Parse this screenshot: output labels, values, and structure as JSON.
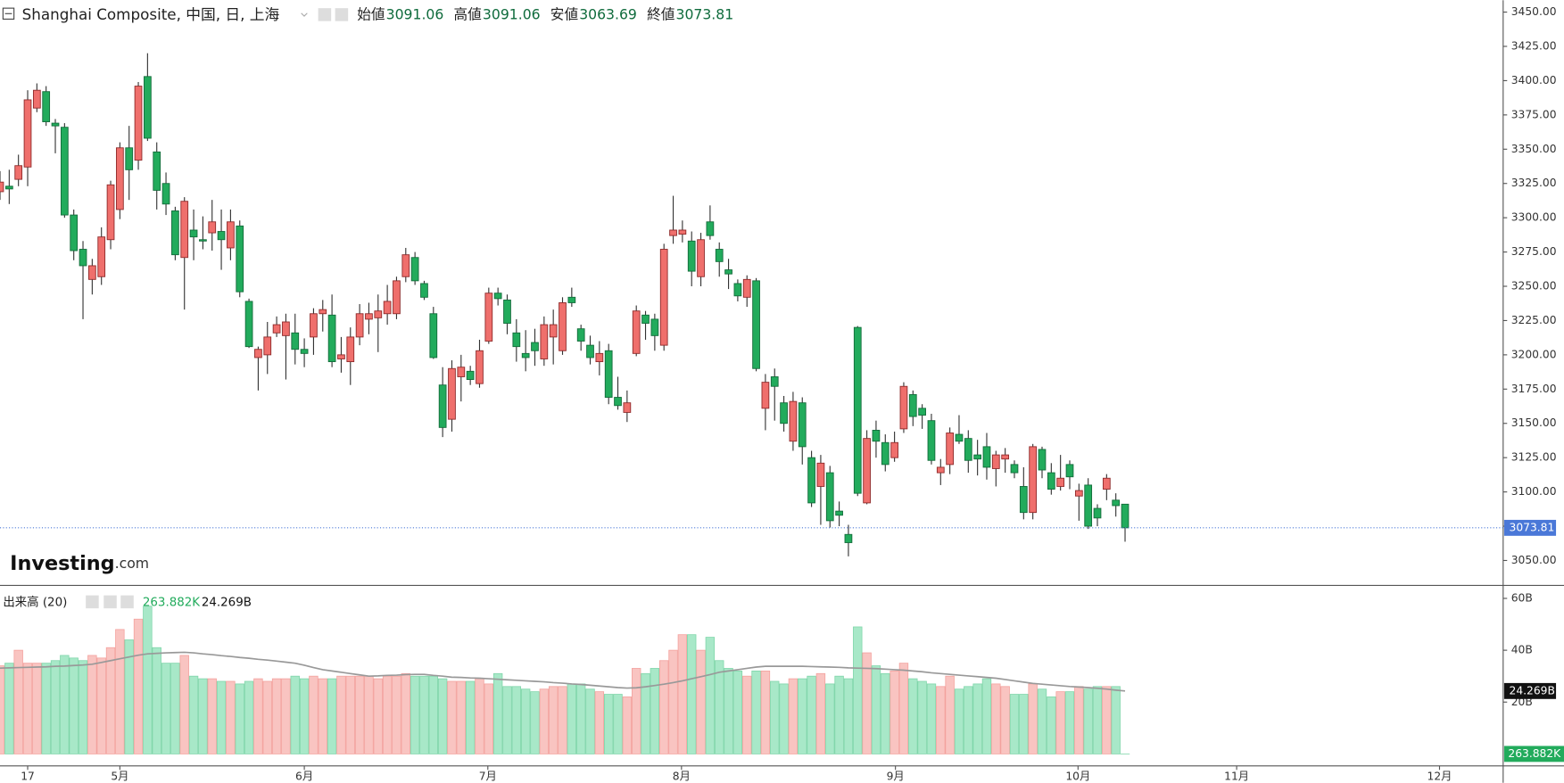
{
  "chart_data": [
    {
      "type": "candlestick",
      "title": "Shanghai Composite, 中国, 日, 上海",
      "legend": [
        {
          "label": "始値",
          "value": 3091.06
        },
        {
          "label": "高値",
          "value": 3091.06
        },
        {
          "label": "安値",
          "value": 3063.69
        },
        {
          "label": "終値",
          "value": 3073.81
        }
      ],
      "watermark": "Investing",
      "watermark_suffix": ".com",
      "up_color": "#ef6f6c",
      "down_color": "#22ab5c",
      "last_price_color": "#4a78d8",
      "open": [
        3319,
        3323,
        3328,
        3337,
        3380,
        3392,
        3369,
        3366,
        3302,
        3277,
        3255,
        3257,
        3284,
        3306,
        3351,
        3342,
        3403,
        3348,
        3325,
        3305,
        3271,
        3291,
        3284,
        3289,
        3290,
        3278,
        3294,
        3239,
        3198,
        3200,
        3216,
        3214,
        3216,
        3204,
        3213,
        3230,
        3229,
        3197,
        3195,
        3213,
        3226,
        3227,
        3230,
        3230,
        3257,
        3271,
        3252,
        3230,
        3178,
        3153,
        3184,
        3188,
        3179,
        3210,
        3245,
        3240,
        3216,
        3201,
        3209,
        3197,
        3213,
        3203,
        3242,
        3219,
        3207,
        3195,
        3203,
        3169,
        3158,
        3201,
        3229,
        3226,
        3207,
        3287,
        3288,
        3283,
        3257,
        3297,
        3277,
        3262,
        3252,
        3242,
        3254,
        3161,
        3184,
        3165,
        3137,
        3165,
        3125,
        3104,
        3114,
        3086,
        3069,
        3220,
        3092,
        3145,
        3136,
        3125,
        3146,
        3171,
        3161,
        3152,
        3114,
        3120,
        3142,
        3139,
        3127,
        3133,
        3117,
        3124,
        3120,
        3104,
        3085,
        3131,
        3114,
        3104,
        3120,
        3097,
        3105,
        3088,
        3102,
        3094,
        3091.06
      ],
      "high": [
        3334,
        3335,
        3346,
        3393,
        3398,
        3396,
        3372,
        3369,
        3306,
        3283,
        3270,
        3293,
        3327,
        3355,
        3367,
        3399,
        3420,
        3355,
        3333,
        3308,
        3315,
        3306,
        3301,
        3313,
        3306,
        3306,
        3298,
        3241,
        3206,
        3224,
        3228,
        3230,
        3230,
        3212,
        3234,
        3240,
        3244,
        3213,
        3220,
        3237,
        3238,
        3244,
        3251,
        3257,
        3278,
        3275,
        3254,
        3235,
        3191,
        3196,
        3200,
        3192,
        3211,
        3249,
        3249,
        3244,
        3226,
        3218,
        3219,
        3228,
        3233,
        3242,
        3249,
        3222,
        3214,
        3210,
        3208,
        3184,
        3174,
        3236,
        3232,
        3230,
        3281,
        3316,
        3298,
        3290,
        3289,
        3309,
        3282,
        3270,
        3255,
        3258,
        3256,
        3186,
        3190,
        3170,
        3173,
        3169,
        3130,
        3127,
        3119,
        3093,
        3076,
        3221,
        3145,
        3152,
        3142,
        3144,
        3180,
        3174,
        3164,
        3157,
        3124,
        3147,
        3156,
        3145,
        3138,
        3143,
        3130,
        3132,
        3123,
        3118,
        3135,
        3133,
        3121,
        3127,
        3123,
        3106,
        3110,
        3091,
        3113,
        3099,
        3091.06
      ],
      "low": [
        3313,
        3310,
        3323,
        3323,
        3377,
        3367,
        3347,
        3300,
        3269,
        3226,
        3244,
        3251,
        3277,
        3299,
        3313,
        3335,
        3356,
        3306,
        3302,
        3269,
        3233,
        3269,
        3277,
        3276,
        3262,
        3269,
        3242,
        3205,
        3174,
        3186,
        3213,
        3182,
        3193,
        3191,
        3200,
        3217,
        3191,
        3187,
        3178,
        3207,
        3215,
        3202,
        3222,
        3226,
        3253,
        3251,
        3240,
        3197,
        3140,
        3144,
        3166,
        3178,
        3176,
        3208,
        3236,
        3215,
        3195,
        3188,
        3192,
        3192,
        3193,
        3200,
        3235,
        3203,
        3193,
        3185,
        3164,
        3160,
        3151,
        3199,
        3211,
        3203,
        3203,
        3281,
        3282,
        3250,
        3250,
        3284,
        3257,
        3248,
        3239,
        3235,
        3188,
        3145,
        3152,
        3144,
        3130,
        3120,
        3089,
        3076,
        3074,
        3075,
        3053,
        3097,
        3091,
        3125,
        3115,
        3122,
        3143,
        3148,
        3146,
        3120,
        3105,
        3113,
        3135,
        3114,
        3112,
        3109,
        3104,
        3114,
        3110,
        3080,
        3080,
        3110,
        3098,
        3101,
        3102,
        3079,
        3073,
        3075,
        3094,
        3082,
        3063.69
      ],
      "close": [
        3326,
        3321,
        3338,
        3386,
        3393,
        3370,
        3367,
        3302,
        3276,
        3265,
        3265,
        3286,
        3324,
        3351,
        3335,
        3396,
        3358,
        3320,
        3310,
        3273,
        3312,
        3286,
        3283,
        3297,
        3284,
        3297,
        3246,
        3206,
        3204,
        3213,
        3222,
        3224,
        3204,
        3201,
        3230,
        3233,
        3195,
        3200,
        3213,
        3230,
        3230,
        3232,
        3239,
        3254,
        3273,
        3254,
        3242,
        3198,
        3147,
        3190,
        3191,
        3182,
        3203,
        3245,
        3241,
        3223,
        3206,
        3198,
        3203,
        3222,
        3222,
        3238,
        3238,
        3210,
        3198,
        3201,
        3169,
        3163,
        3165,
        3232,
        3223,
        3214,
        3277,
        3291,
        3291,
        3261,
        3284,
        3287,
        3268,
        3259,
        3243,
        3255,
        3190,
        3180,
        3177,
        3150,
        3166,
        3133,
        3092,
        3121,
        3079,
        3083,
        3063,
        3099,
        3139,
        3137,
        3120,
        3136,
        3177,
        3155,
        3156,
        3123,
        3118,
        3143,
        3137,
        3123,
        3124,
        3118,
        3127,
        3127,
        3114,
        3085,
        3133,
        3116,
        3102,
        3110,
        3111,
        3101,
        3075,
        3081,
        3110,
        3090,
        3073.81
      ],
      "ylim": [
        3031.8,
        3458.7
      ],
      "yticks": [
        {
          "value": 3050,
          "label": "3050.00"
        },
        {
          "value": 3075,
          "label": "3075.00"
        },
        {
          "value": 3100,
          "label": "3100.00"
        },
        {
          "value": 3125,
          "label": "3125.00"
        },
        {
          "value": 3150,
          "label": "3150.00"
        },
        {
          "value": 3175,
          "label": "3175.00"
        },
        {
          "value": 3200,
          "label": "3200.00"
        },
        {
          "value": 3225,
          "label": "3225.00"
        },
        {
          "value": 3250,
          "label": "3250.00"
        },
        {
          "value": 3275,
          "label": "3275.00"
        },
        {
          "value": 3300,
          "label": "3300.00"
        },
        {
          "value": 3325,
          "label": "3325.00"
        },
        {
          "value": 3350,
          "label": "3350.00"
        },
        {
          "value": 3375,
          "label": "3375.00"
        },
        {
          "value": 3400,
          "label": "3400.00"
        },
        {
          "value": 3425,
          "label": "3425.00"
        },
        {
          "value": 3450,
          "label": "3450.00"
        }
      ],
      "grid": false
    },
    {
      "type": "bar",
      "title": "出来高 (20)",
      "up_color": "#f9c4c1",
      "down_color": "#a8e8c8",
      "up_stroke": "#f3a19d",
      "down_stroke": "#7fd5a9",
      "series": [
        {
          "color": "#22ab5c",
          "values": [
            34,
            35,
            40,
            35,
            35,
            35,
            36,
            38,
            37,
            36,
            38,
            37,
            41,
            48,
            44,
            52,
            57,
            41,
            35,
            35,
            38,
            30,
            29,
            29,
            28,
            28,
            27,
            28,
            29,
            28,
            29,
            29,
            30,
            29,
            30,
            29,
            29,
            30,
            30,
            30,
            30,
            29,
            30,
            30,
            31,
            30,
            30,
            30,
            29,
            28,
            28,
            28,
            29,
            27,
            31,
            26,
            26,
            25,
            24,
            25,
            26,
            26,
            27,
            27,
            25,
            24,
            23,
            23,
            22,
            33,
            31,
            33,
            36,
            40,
            46,
            46,
            40,
            45,
            36,
            33,
            32,
            30,
            32,
            32,
            28,
            27,
            29,
            29,
            30,
            31,
            27,
            30,
            29,
            49,
            39,
            34,
            31,
            32,
            35,
            29,
            28,
            27,
            26,
            30,
            25,
            26,
            27,
            29,
            27,
            26,
            23,
            23,
            27,
            25,
            22,
            24,
            24,
            26,
            25,
            26,
            26,
            26,
            0.000263882
          ],
          "value_labels": [
            null,
            null,
            null,
            null,
            null,
            null,
            null,
            null,
            null,
            null,
            null,
            null,
            null,
            null,
            null,
            null,
            null,
            null,
            null,
            null,
            null,
            null,
            null,
            null,
            null,
            null,
            null,
            null,
            null,
            null,
            null,
            null,
            null,
            null,
            null,
            null,
            null,
            null,
            null,
            null,
            null,
            null,
            null,
            null,
            null,
            null,
            null,
            null,
            null,
            null,
            null,
            null,
            null,
            null,
            null,
            null,
            null,
            null,
            null,
            null,
            null,
            null,
            null,
            null,
            null,
            null,
            null,
            null,
            null,
            null,
            null,
            null,
            null,
            null,
            null,
            null,
            null,
            null,
            null,
            null,
            null,
            null,
            null,
            null,
            null,
            null,
            null,
            null,
            null,
            null,
            null,
            null,
            null,
            null,
            null,
            null,
            null,
            null,
            null,
            null,
            null,
            null,
            null,
            null,
            null,
            null,
            null,
            null,
            null,
            null,
            null,
            null,
            null,
            null,
            null,
            null,
            null,
            null,
            null,
            null,
            null,
            null,
            "263.882K"
          ]
        },
        {
          "type": "line",
          "color": "#999999",
          "values": [
            33.1,
            33.2,
            33.3,
            33.4,
            33.5,
            33.6,
            33.8,
            33.9,
            34.1,
            34.3,
            34.6,
            35.3,
            36.0,
            36.7,
            37.4,
            38.1,
            38.6,
            38.8,
            39.0,
            39.1,
            39.2,
            39.0,
            38.6,
            38.3,
            37.9,
            37.6,
            37.2,
            36.9,
            36.5,
            36.2,
            35.8,
            35.4,
            35.0,
            34.2,
            33.3,
            32.5,
            32.0,
            31.5,
            31.0,
            30.5,
            30.0,
            30.1,
            30.3,
            30.4,
            30.6,
            30.7,
            30.7,
            30.3,
            30.0,
            29.6,
            29.5,
            29.3,
            29.2,
            29.0,
            28.8,
            28.6,
            28.4,
            28.2,
            28.0,
            27.8,
            27.5,
            27.3,
            27.0,
            26.8,
            26.5,
            26.2,
            25.9,
            25.6,
            25.4,
            25.5,
            25.9,
            26.4,
            26.9,
            27.5,
            28.2,
            29.0,
            29.8,
            30.6,
            31.5,
            32.0,
            32.5,
            33.0,
            33.5,
            33.8,
            33.8,
            33.8,
            33.8,
            33.8,
            33.7,
            33.6,
            33.5,
            33.4,
            33.2,
            33.1,
            33.0,
            32.9,
            32.7,
            32.5,
            32.3,
            32.0,
            31.7,
            31.3,
            31.0,
            30.7,
            30.4,
            30.1,
            29.8,
            29.5,
            29.2,
            28.7,
            28.2,
            27.7,
            27.2,
            26.9,
            26.6,
            26.3,
            26.0,
            25.8,
            25.6,
            25.3,
            25.0,
            24.6,
            24.269
          ],
          "value_labels": [
            null,
            null,
            null,
            null,
            null,
            null,
            null,
            null,
            null,
            null,
            null,
            null,
            null,
            null,
            null,
            null,
            null,
            null,
            null,
            null,
            null,
            null,
            null,
            null,
            null,
            null,
            null,
            null,
            null,
            null,
            null,
            null,
            null,
            null,
            null,
            null,
            null,
            null,
            null,
            null,
            null,
            null,
            null,
            null,
            null,
            null,
            null,
            null,
            null,
            null,
            null,
            null,
            null,
            null,
            null,
            null,
            null,
            null,
            null,
            null,
            null,
            null,
            null,
            null,
            null,
            null,
            null,
            null,
            null,
            null,
            null,
            null,
            null,
            null,
            null,
            null,
            null,
            null,
            null,
            null,
            null,
            null,
            null,
            null,
            null,
            null,
            null,
            null,
            null,
            null,
            null,
            null,
            null,
            null,
            null,
            null,
            null,
            null,
            null,
            null,
            null,
            null,
            null,
            null,
            null,
            null,
            null,
            null,
            null,
            null,
            null,
            null,
            null,
            null,
            null,
            null,
            null,
            null,
            null,
            null,
            null,
            null,
            "24.269B"
          ]
        }
      ],
      "ylim": [
        0,
        63.85
      ],
      "yticks": [
        {
          "value": 20,
          "label": "20B"
        },
        {
          "value": 40,
          "label": "40B"
        },
        {
          "value": 60,
          "label": "60B"
        }
      ],
      "xlim": [
        0,
        163
      ],
      "xticks": [
        {
          "value": 3.0,
          "label": "17"
        },
        {
          "value": 13.0,
          "label": "5月"
        },
        {
          "value": 33.0,
          "label": "6月"
        },
        {
          "value": 52.9,
          "label": "7月"
        },
        {
          "value": 73.9,
          "label": "8月"
        },
        {
          "value": 97.1,
          "label": "9月"
        },
        {
          "value": 116.9,
          "label": "10月"
        },
        {
          "value": 134.1,
          "label": "11月"
        },
        {
          "value": 156.1,
          "label": "12月"
        }
      ]
    }
  ]
}
